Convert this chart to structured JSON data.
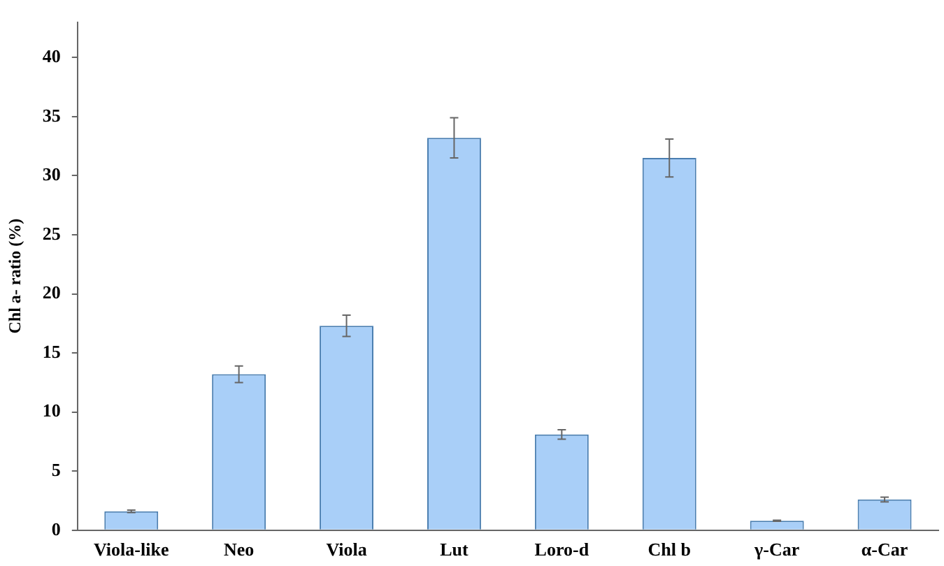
{
  "chart_data": {
    "type": "bar",
    "ylabel": "Chl a- ratio (%)",
    "categories": [
      "Viola-like",
      "Neo",
      "Viola",
      "Lut",
      "Loro-d",
      "Chl b",
      "γ-Car",
      "α-Car"
    ],
    "values": [
      1.6,
      13.2,
      17.3,
      33.2,
      8.1,
      31.5,
      0.8,
      2.6
    ],
    "errors": [
      0.1,
      0.7,
      0.9,
      1.7,
      0.4,
      1.6,
      0.05,
      0.2
    ],
    "color": "#a9cff8",
    "ylim": [
      0,
      43
    ],
    "yticks": [
      0,
      5,
      10,
      15,
      20,
      25,
      30,
      35,
      40
    ],
    "grid": false,
    "legend": false
  }
}
